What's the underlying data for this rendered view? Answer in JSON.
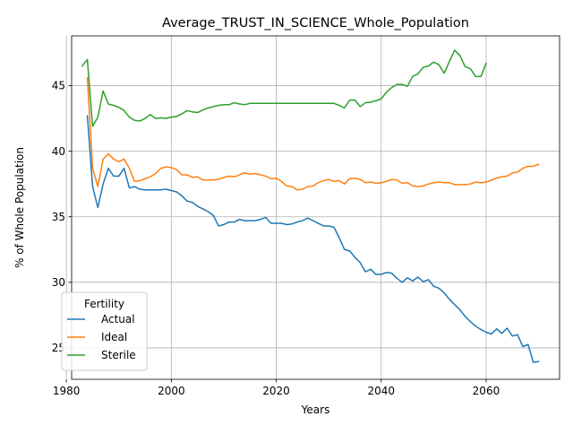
{
  "chart_data": {
    "type": "line",
    "title": "Average_TRUST_IN_SCIENCE_Whole_Population",
    "xlabel": "Years",
    "ylabel": "% of Whole Population",
    "xlim": [
      1981,
      2074
    ],
    "ylim": [
      22.6,
      48.8
    ],
    "xticks": [
      1980,
      2000,
      2020,
      2040,
      2060
    ],
    "yticks": [
      25,
      30,
      35,
      40,
      45
    ],
    "grid": true,
    "legend": {
      "title": "Fertility",
      "placement": "lower-left"
    },
    "series": [
      {
        "name": "Actual",
        "color": "#1f77b4",
        "x": [
          1984,
          1985,
          1986,
          1987,
          1988,
          1989,
          1990,
          1991,
          1992,
          1993,
          1994,
          1995,
          1996,
          1997,
          1998,
          1999,
          2000,
          2001,
          2002,
          2003,
          2004,
          2005,
          2006,
          2007,
          2008,
          2009,
          2010,
          2011,
          2012,
          2013,
          2014,
          2015,
          2016,
          2017,
          2018,
          2019,
          2020,
          2021,
          2022,
          2023,
          2024,
          2025,
          2026,
          2027,
          2028,
          2029,
          2030,
          2031,
          2032,
          2033,
          2034,
          2035,
          2036,
          2037,
          2038,
          2039,
          2040,
          2041,
          2042,
          2043,
          2044,
          2045,
          2046,
          2047,
          2048,
          2049,
          2050,
          2051,
          2052,
          2053,
          2054,
          2055,
          2056,
          2057,
          2058,
          2059,
          2060,
          2061,
          2062,
          2063,
          2064,
          2065,
          2066,
          2067,
          2068,
          2069,
          2070
        ],
        "y": [
          42.7,
          37.3,
          35.7,
          37.5,
          38.7,
          38.1,
          38.1,
          38.7,
          37.2,
          37.3,
          37.1,
          37.05,
          37.05,
          37.05,
          37.05,
          37.1,
          37.0,
          36.9,
          36.6,
          36.2,
          36.1,
          35.8,
          35.6,
          35.4,
          35.1,
          34.3,
          34.4,
          34.6,
          34.6,
          34.8,
          34.7,
          34.7,
          34.7,
          34.8,
          34.95,
          34.5,
          34.5,
          34.5,
          34.4,
          34.45,
          34.6,
          34.7,
          34.9,
          34.7,
          34.5,
          34.3,
          34.3,
          34.2,
          33.4,
          32.5,
          32.4,
          31.9,
          31.5,
          30.8,
          31.0,
          30.6,
          30.6,
          30.75,
          30.7,
          30.3,
          30.0,
          30.35,
          30.1,
          30.4,
          30.05,
          30.2,
          29.7,
          29.55,
          29.2,
          28.7,
          28.3,
          27.9,
          27.4,
          27.0,
          26.65,
          26.4,
          26.2,
          26.05,
          26.45,
          26.1,
          26.5,
          25.9,
          26.0,
          25.1,
          25.25,
          23.9,
          23.95
        ]
      },
      {
        "name": "Ideal",
        "color": "#ff7f0e",
        "x": [
          1984,
          1985,
          1986,
          1987,
          1988,
          1989,
          1990,
          1991,
          1992,
          1993,
          1994,
          1995,
          1996,
          1997,
          1998,
          1999,
          2000,
          2001,
          2002,
          2003,
          2004,
          2005,
          2006,
          2007,
          2008,
          2009,
          2010,
          2011,
          2012,
          2013,
          2014,
          2015,
          2016,
          2017,
          2018,
          2019,
          2020,
          2021,
          2022,
          2023,
          2024,
          2025,
          2026,
          2027,
          2028,
          2029,
          2030,
          2031,
          2032,
          2033,
          2034,
          2035,
          2036,
          2037,
          2038,
          2039,
          2040,
          2041,
          2042,
          2043,
          2044,
          2045,
          2046,
          2047,
          2048,
          2049,
          2050,
          2051,
          2052,
          2053,
          2054,
          2055,
          2056,
          2057,
          2058,
          2059,
          2060,
          2061,
          2062,
          2063,
          2064,
          2065,
          2066,
          2067,
          2068,
          2069,
          2070
        ],
        "y": [
          45.6,
          38.7,
          37.3,
          39.4,
          39.8,
          39.4,
          39.2,
          39.4,
          38.7,
          37.7,
          37.75,
          37.9,
          38.05,
          38.3,
          38.7,
          38.8,
          38.75,
          38.6,
          38.2,
          38.2,
          38.0,
          38.05,
          37.8,
          37.8,
          37.8,
          37.85,
          38.0,
          38.1,
          38.05,
          38.2,
          38.35,
          38.25,
          38.3,
          38.2,
          38.1,
          37.9,
          37.95,
          37.7,
          37.35,
          37.3,
          37.05,
          37.1,
          37.3,
          37.35,
          37.6,
          37.75,
          37.85,
          37.7,
          37.75,
          37.5,
          37.9,
          37.95,
          37.85,
          37.6,
          37.65,
          37.55,
          37.6,
          37.7,
          37.85,
          37.8,
          37.55,
          37.6,
          37.35,
          37.3,
          37.35,
          37.5,
          37.6,
          37.65,
          37.6,
          37.6,
          37.45,
          37.45,
          37.45,
          37.5,
          37.65,
          37.6,
          37.65,
          37.8,
          37.95,
          38.05,
          38.1,
          38.35,
          38.4,
          38.7,
          38.85,
          38.85,
          39.0
        ]
      },
      {
        "name": "Sterile",
        "color": "#2ca02c",
        "x": [
          1983,
          1984,
          1985,
          1986,
          1987,
          1988,
          1989,
          1990,
          1991,
          1992,
          1993,
          1994,
          1995,
          1996,
          1997,
          1998,
          1999,
          2000,
          2001,
          2002,
          2003,
          2004,
          2005,
          2006,
          2007,
          2008,
          2009,
          2010,
          2011,
          2012,
          2013,
          2014,
          2015,
          2016,
          2017,
          2018,
          2019,
          2020,
          2021,
          2022,
          2023,
          2024,
          2025,
          2026,
          2027,
          2028,
          2029,
          2030,
          2031,
          2032,
          2033,
          2034,
          2035,
          2036,
          2037,
          2038,
          2039,
          2040,
          2041,
          2042,
          2043,
          2044,
          2045,
          2046,
          2047,
          2048,
          2049,
          2050,
          2051,
          2052,
          2053,
          2054,
          2055,
          2056,
          2057,
          2058,
          2059,
          2060
        ],
        "y": [
          46.5,
          47.0,
          41.9,
          42.6,
          44.6,
          43.6,
          43.5,
          43.35,
          43.1,
          42.6,
          42.35,
          42.3,
          42.5,
          42.8,
          42.5,
          42.55,
          42.5,
          42.6,
          42.65,
          42.85,
          43.1,
          43.0,
          42.95,
          43.15,
          43.3,
          43.4,
          43.5,
          43.55,
          43.55,
          43.7,
          43.6,
          43.55,
          43.65,
          43.65,
          43.65,
          43.65,
          43.65,
          43.65,
          43.65,
          43.65,
          43.65,
          43.65,
          43.65,
          43.65,
          43.65,
          43.65,
          43.65,
          43.65,
          43.65,
          43.5,
          43.3,
          43.9,
          43.9,
          43.4,
          43.7,
          43.75,
          43.85,
          44.0,
          44.5,
          44.85,
          45.1,
          45.1,
          44.95,
          45.7,
          45.9,
          46.4,
          46.5,
          46.8,
          46.6,
          45.95,
          46.85,
          47.7,
          47.3,
          46.45,
          46.3,
          45.7,
          45.7,
          46.7
        ]
      }
    ]
  }
}
